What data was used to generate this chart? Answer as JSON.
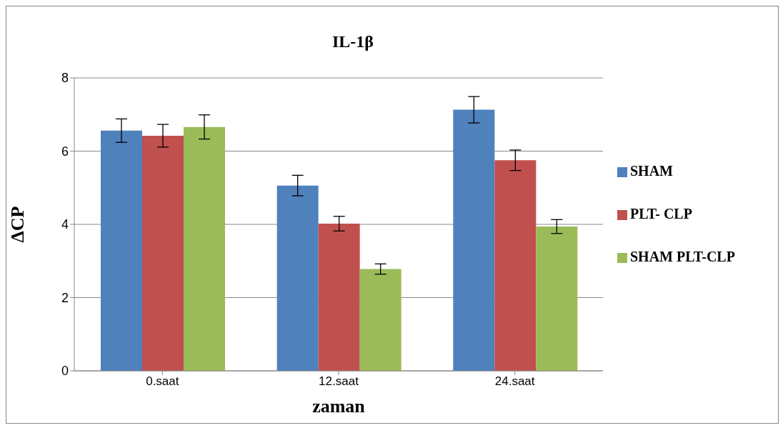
{
  "chart_data": {
    "type": "bar",
    "title": "IL-1β",
    "xlabel": "zaman",
    "ylabel": "ΔCP",
    "categories": [
      "0.saat",
      "12.saat",
      "24.saat"
    ],
    "series": [
      {
        "name": "SHAM",
        "color": "#4f81bd",
        "values": [
          6.56,
          5.06,
          7.13
        ],
        "errors": [
          0.32,
          0.28,
          0.36
        ]
      },
      {
        "name": "PLT- CLP",
        "color": "#c0504d",
        "values": [
          6.42,
          4.02,
          5.75
        ],
        "errors": [
          0.31,
          0.2,
          0.28
        ]
      },
      {
        "name": "SHAM PLT-CLP",
        "color": "#9bbb59",
        "values": [
          6.66,
          2.78,
          3.94
        ],
        "errors": [
          0.33,
          0.14,
          0.19
        ]
      }
    ],
    "ylim": [
      0,
      8
    ],
    "yticks": [
      0,
      2,
      4,
      6,
      8
    ],
    "grid": "y",
    "legend": "right"
  }
}
